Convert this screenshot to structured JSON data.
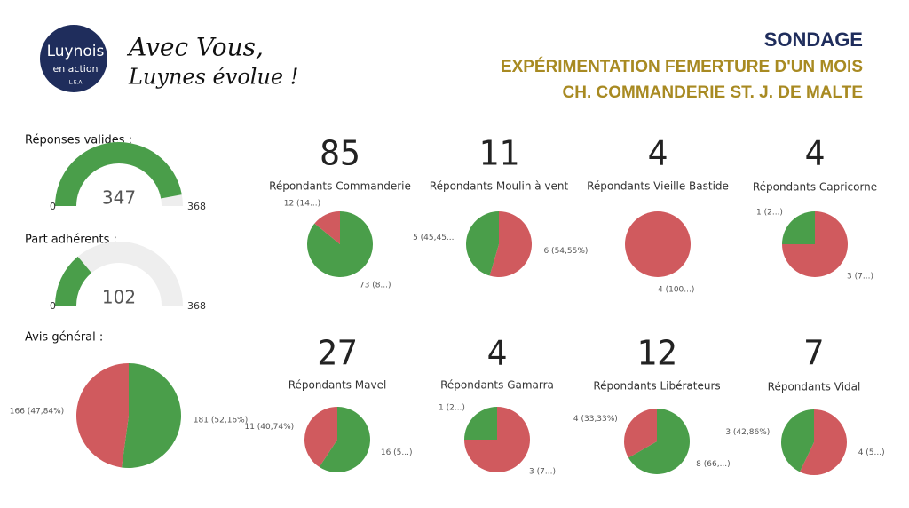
{
  "header": {
    "logo_line1": "Luynois",
    "logo_line2": "en action",
    "logo_line3": "L.E.A",
    "slogan1": "Avec Vous,",
    "slogan2": "Luynes évolue !",
    "title": "SONDAGE",
    "subtitle1": "EXPÉRIMENTATION FEMERTURE D'UN MOIS",
    "subtitle2": "CH. COMMANDERIE ST. J. DE MALTE"
  },
  "chart_data": [
    {
      "type": "gauge",
      "title": "Réponses valides :",
      "value": 347,
      "ylim": [
        0,
        368
      ],
      "color": "#4a9e4a",
      "track_color": "#eeeeee"
    },
    {
      "type": "gauge",
      "title": "Part adhérents :",
      "value": 102,
      "ylim": [
        0,
        368
      ],
      "color": "#4a9e4a",
      "track_color": "#eeeeee"
    },
    {
      "type": "pie",
      "title": "Avis général :",
      "values": [
        181,
        166
      ],
      "colors": [
        "#4a9e4a",
        "#d05a5e"
      ],
      "value_labels": [
        "181 (52,16%)",
        "166 (47,84%)"
      ]
    },
    {
      "type": "pie",
      "value": 85,
      "title": "Répondants Commanderie",
      "values": [
        73,
        12
      ],
      "colors": [
        "#4a9e4a",
        "#d05a5e"
      ],
      "value_labels": [
        "73 (8...)",
        "12 (14...)"
      ]
    },
    {
      "type": "pie",
      "value": 11,
      "title": "Répondants Moulin à vent",
      "values": [
        6,
        5
      ],
      "colors": [
        "#d05a5e",
        "#4a9e4a"
      ],
      "value_labels": [
        "6 (54,55%)",
        "5 (45,45..."
      ]
    },
    {
      "type": "pie",
      "value": 4,
      "title": "Répondants Vieille Bastide",
      "values": [
        4
      ],
      "colors": [
        "#d05a5e"
      ],
      "value_labels": [
        "4 (100...)"
      ]
    },
    {
      "type": "pie",
      "value": 4,
      "title": "Répondants Capricorne",
      "values": [
        3,
        1
      ],
      "colors": [
        "#d05a5e",
        "#4a9e4a"
      ],
      "value_labels": [
        "3 (7...)",
        "1 (2...)"
      ]
    },
    {
      "type": "pie",
      "value": 27,
      "title": "Répondants Mavel",
      "values": [
        16,
        11
      ],
      "colors": [
        "#4a9e4a",
        "#d05a5e"
      ],
      "value_labels": [
        "16 (5...)",
        "11 (40,74%)"
      ]
    },
    {
      "type": "pie",
      "value": 4,
      "title": "Répondants Gamarra",
      "values": [
        3,
        1
      ],
      "colors": [
        "#d05a5e",
        "#4a9e4a"
      ],
      "value_labels": [
        "3 (7...)",
        "1 (2...)"
      ]
    },
    {
      "type": "pie",
      "value": 12,
      "title": "Répondants Libérateurs",
      "values": [
        8,
        4
      ],
      "colors": [
        "#4a9e4a",
        "#d05a5e"
      ],
      "value_labels": [
        "8 (66,...)",
        "4 (33,33%)"
      ]
    },
    {
      "type": "pie",
      "value": 7,
      "title": "Répondants Vidal",
      "values": [
        4,
        3
      ],
      "colors": [
        "#d05a5e",
        "#4a9e4a"
      ],
      "value_labels": [
        "4 (5...)",
        "3 (42,86%)"
      ]
    }
  ]
}
